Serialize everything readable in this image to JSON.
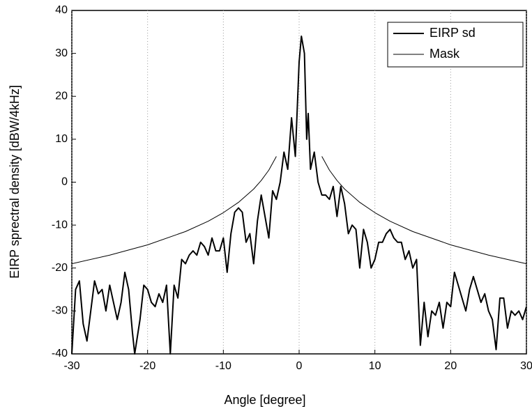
{
  "chart_data": {
    "type": "line",
    "xlabel": "Angle [degree]",
    "ylabel": "EIRP sprectral density [dBW/4kHz]",
    "xlim": [
      -30,
      30
    ],
    "xticks": [
      -30,
      -20,
      -10,
      0,
      10,
      20,
      30
    ],
    "ylim": [
      -40,
      40
    ],
    "yticks": [
      -40,
      -30,
      -20,
      -10,
      0,
      10,
      20,
      30,
      40
    ],
    "grid": "x",
    "legend": "upper right",
    "series": [
      {
        "name": "EIRP sd",
        "color": "#000000",
        "width": 2,
        "x": [
          -30,
          -29.5,
          -29,
          -28.5,
          -28,
          -27.5,
          -27,
          -26.5,
          -26,
          -25.5,
          -25,
          -24.5,
          -24,
          -23.5,
          -23,
          -22.5,
          -22,
          -21.7,
          -21,
          -20.5,
          -20,
          -19.5,
          -19,
          -18.5,
          -18,
          -17.5,
          -17,
          -16.5,
          -16,
          -15.5,
          -15,
          -14.5,
          -14,
          -13.5,
          -13,
          -12.5,
          -12,
          -11.5,
          -11,
          -10.5,
          -10,
          -9.5,
          -9,
          -8.5,
          -8,
          -7.5,
          -7,
          -6.5,
          -6,
          -5.5,
          -5,
          -4.5,
          -4,
          -3.5,
          -3,
          -2.5,
          -2,
          -1.5,
          -1,
          -0.5,
          0,
          0.3,
          0.7,
          1,
          1.2,
          1.5,
          2,
          2.5,
          3,
          3.5,
          4,
          4.5,
          5,
          5.5,
          6,
          6.5,
          7,
          7.5,
          8,
          8.5,
          9,
          9.5,
          10,
          10.5,
          11,
          11.5,
          12,
          12.5,
          13,
          13.5,
          14,
          14.5,
          15,
          15.5,
          16,
          16.5,
          17,
          17.5,
          18,
          18.5,
          19,
          19.5,
          20,
          20.5,
          21,
          21.5,
          22,
          22.5,
          23,
          23.5,
          24,
          24.5,
          25,
          25.5,
          26,
          26.5,
          27,
          27.5,
          28,
          28.5,
          29,
          29.5,
          30
        ],
        "values": [
          -40,
          -25,
          -23,
          -33,
          -37,
          -30,
          -23,
          -26,
          -25,
          -30,
          -24,
          -28,
          -32,
          -28,
          -21,
          -25,
          -35,
          -40,
          -32,
          -24,
          -25,
          -28,
          -29,
          -26,
          -28,
          -24,
          -40,
          -24,
          -27,
          -18,
          -19,
          -17,
          -16,
          -17,
          -14,
          -15,
          -17,
          -13,
          -16,
          -16,
          -13,
          -21,
          -12,
          -7,
          -6,
          -7,
          -14,
          -12,
          -19,
          -9,
          -3,
          -8,
          -13,
          -2,
          -4,
          0,
          7,
          3,
          15,
          6,
          28,
          34,
          30,
          10,
          16,
          3,
          7,
          0,
          -3,
          -3,
          -4,
          -1,
          -8,
          -1,
          -5,
          -12,
          -10,
          -11,
          -20,
          -11,
          -14,
          -20,
          -18,
          -14,
          -14,
          -12,
          -11,
          -13,
          -14,
          -14,
          -18,
          -16,
          -20,
          -18,
          -38,
          -28,
          -36,
          -30,
          -31,
          -28,
          -34,
          -28,
          -29,
          -21,
          -24,
          -27,
          -30,
          -25,
          -22,
          -25,
          -28,
          -26,
          -30,
          -32,
          -39,
          -27,
          -27,
          -34,
          -30,
          -31,
          -30,
          -32,
          -29
        ]
      },
      {
        "name": "Mask",
        "color": "#000000",
        "width": 1,
        "x": [
          -30,
          -25,
          -20,
          -15,
          -12,
          -10,
          -8,
          -6,
          -5,
          -4,
          -3,
          0,
          3,
          4,
          5,
          6,
          8,
          10,
          12,
          15,
          20,
          25,
          30
        ],
        "values": [
          -19.0,
          -17.0,
          -14.6,
          -11.5,
          -9.1,
          -7.1,
          -4.7,
          -1.6,
          0.4,
          2.8,
          6.0,
          null,
          6.0,
          2.8,
          0.4,
          -1.6,
          -4.7,
          -7.1,
          -9.1,
          -11.5,
          -14.6,
          -17.0,
          -19.0
        ]
      }
    ]
  }
}
